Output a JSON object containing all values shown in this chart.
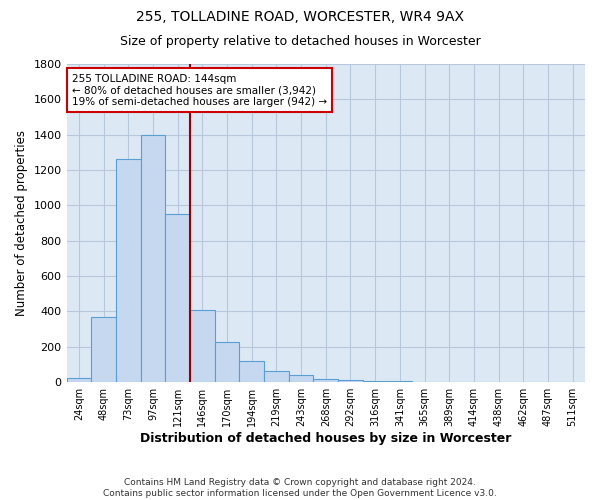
{
  "title1": "255, TOLLADINE ROAD, WORCESTER, WR4 9AX",
  "title2": "Size of property relative to detached houses in Worcester",
  "xlabel": "Distribution of detached houses by size in Worcester",
  "ylabel": "Number of detached properties",
  "footnote": "Contains HM Land Registry data © Crown copyright and database right 2024.\nContains public sector information licensed under the Open Government Licence v3.0.",
  "categories": [
    "24sqm",
    "48sqm",
    "73sqm",
    "97sqm",
    "121sqm",
    "146sqm",
    "170sqm",
    "194sqm",
    "219sqm",
    "243sqm",
    "268sqm",
    "292sqm",
    "316sqm",
    "341sqm",
    "365sqm",
    "389sqm",
    "414sqm",
    "438sqm",
    "462sqm",
    "487sqm",
    "511sqm"
  ],
  "values": [
    25,
    370,
    1260,
    1400,
    950,
    410,
    230,
    120,
    65,
    40,
    20,
    15,
    8,
    5,
    2,
    1,
    0,
    0,
    0,
    0,
    0
  ],
  "bar_color": "#c5d8f0",
  "bar_edge_color": "#5a9fd4",
  "plot_bg_color": "#dce9f5",
  "background_color": "#ffffff",
  "grid_color": "#b8c8dc",
  "vline_color": "#990000",
  "annotation_text": "255 TOLLADINE ROAD: 144sqm\n← 80% of detached houses are smaller (3,942)\n19% of semi-detached houses are larger (942) →",
  "annotation_box_color": "#ffffff",
  "annotation_box_edge": "#cc0000",
  "ylim": [
    0,
    1800
  ],
  "yticks": [
    0,
    200,
    400,
    600,
    800,
    1000,
    1200,
    1400,
    1600,
    1800
  ],
  "vline_index": 5
}
